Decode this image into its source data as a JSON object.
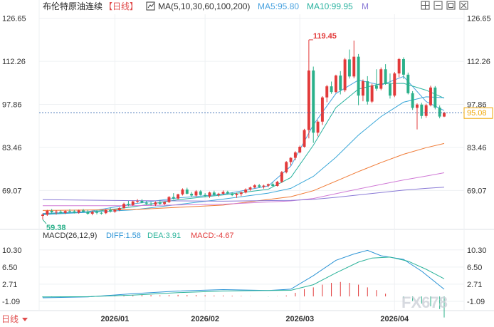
{
  "header": {
    "title": "布伦特原油连续",
    "period_label": "【日线】",
    "ma_label": "MA(5,10,30,60,100,200)",
    "ma5_label": "MA5:95.80",
    "ma10_label": "MA10:99.95",
    "more_label": "M"
  },
  "toolbar": {
    "icons": [
      "grid-icon",
      "restore-icon",
      "maximize-icon",
      "close-icon"
    ]
  },
  "colors": {
    "up": "#e23a3a",
    "down": "#2bb08a",
    "ma5": "#4aa3e0",
    "ma10": "#2bb3a0",
    "ma30": "#39a7d8",
    "ma60": "#f07a35",
    "ma100": "#d07ad6",
    "ma200": "#8a7ad6",
    "diff": "#2a93d5",
    "dea": "#2bb39a",
    "last_price": "#f0a500",
    "grid": "#eef0f3",
    "axis_text": "#333333"
  },
  "chart_data": [
    {
      "type": "candlestick",
      "title": "布伦特原油连续",
      "yticks": [
        126.65,
        112.26,
        97.86,
        83.46,
        69.07
      ],
      "ylim": [
        57.5,
        128.0
      ],
      "xticks": [
        "2026/01",
        "2026/02",
        "2026/03",
        "2026/04"
      ],
      "xtick_index": [
        16,
        36,
        57,
        78
      ],
      "high_label": "119.45",
      "low_label": "59.38",
      "last_price": 95.08,
      "candles": [
        [
          60.6,
          61.4,
          59.4,
          61.0
        ],
        [
          61.0,
          62.6,
          60.6,
          62.3
        ],
        [
          62.3,
          62.9,
          61.4,
          61.8
        ],
        [
          61.8,
          62.5,
          61.0,
          62.0
        ],
        [
          62.0,
          62.5,
          61.4,
          61.6
        ],
        [
          61.6,
          62.4,
          61.2,
          62.2
        ],
        [
          62.2,
          62.8,
          61.7,
          62.1
        ],
        [
          62.1,
          62.6,
          61.4,
          61.7
        ],
        [
          61.7,
          62.7,
          61.3,
          62.4
        ],
        [
          62.4,
          62.9,
          61.8,
          62.0
        ],
        [
          62.0,
          62.6,
          61.0,
          61.3
        ],
        [
          61.3,
          62.3,
          60.8,
          61.9
        ],
        [
          61.9,
          62.6,
          61.1,
          61.6
        ],
        [
          61.6,
          62.0,
          61.0,
          61.5
        ],
        [
          61.5,
          62.9,
          61.2,
          62.6
        ],
        [
          62.6,
          63.4,
          61.7,
          62.0
        ],
        [
          62.0,
          62.9,
          61.6,
          62.5
        ],
        [
          62.5,
          63.5,
          62.2,
          63.2
        ],
        [
          63.2,
          65.0,
          63.0,
          64.6
        ],
        [
          64.6,
          65.6,
          63.8,
          64.2
        ],
        [
          64.2,
          65.7,
          63.9,
          65.4
        ],
        [
          65.4,
          66.2,
          64.9,
          65.6
        ],
        [
          65.6,
          66.2,
          64.8,
          65.0
        ],
        [
          65.0,
          65.6,
          64.3,
          64.7
        ],
        [
          64.7,
          65.3,
          64.0,
          64.4
        ],
        [
          64.4,
          65.4,
          63.9,
          65.1
        ],
        [
          65.1,
          65.9,
          64.3,
          64.6
        ],
        [
          64.6,
          65.4,
          64.1,
          65.2
        ],
        [
          65.2,
          67.2,
          64.9,
          66.9
        ],
        [
          66.9,
          68.2,
          66.1,
          66.4
        ],
        [
          66.4,
          68.0,
          66.1,
          67.8
        ],
        [
          67.8,
          69.8,
          67.4,
          69.4
        ],
        [
          69.4,
          70.0,
          67.8,
          68.0
        ],
        [
          68.0,
          68.6,
          66.9,
          67.4
        ],
        [
          67.4,
          69.2,
          67.0,
          68.8
        ],
        [
          68.8,
          69.2,
          67.4,
          67.6
        ],
        [
          67.6,
          68.2,
          66.9,
          67.2
        ],
        [
          67.2,
          68.7,
          66.6,
          68.4
        ],
        [
          68.4,
          69.0,
          67.3,
          67.6
        ],
        [
          67.6,
          68.3,
          67.0,
          68.0
        ],
        [
          68.0,
          69.1,
          67.7,
          68.6
        ],
        [
          68.6,
          69.0,
          67.8,
          68.1
        ],
        [
          68.1,
          68.5,
          67.2,
          67.5
        ],
        [
          67.5,
          68.3,
          66.6,
          67.9
        ],
        [
          67.9,
          68.7,
          67.2,
          68.4
        ],
        [
          68.4,
          69.8,
          68.1,
          69.4
        ],
        [
          69.4,
          70.4,
          69.0,
          70.1
        ],
        [
          70.1,
          71.2,
          69.8,
          70.8
        ],
        [
          70.8,
          71.3,
          69.9,
          70.3
        ],
        [
          70.3,
          71.0,
          69.7,
          70.7
        ],
        [
          70.7,
          71.4,
          70.2,
          71.2
        ],
        [
          71.2,
          71.8,
          70.3,
          70.6
        ],
        [
          70.6,
          72.3,
          70.4,
          72.0
        ],
        [
          72.0,
          75.6,
          71.6,
          75.2
        ],
        [
          75.2,
          78.9,
          74.8,
          78.6
        ],
        [
          78.6,
          80.2,
          77.4,
          80.0
        ],
        [
          80.0,
          82.2,
          79.2,
          81.8
        ],
        [
          81.8,
          84.1,
          81.5,
          83.7
        ],
        [
          83.7,
          89.7,
          83.4,
          89.3
        ],
        [
          89.3,
          119.45,
          86.5,
          109.2
        ],
        [
          109.2,
          110.5,
          85.0,
          88.4
        ],
        [
          88.4,
          92.6,
          87.2,
          92.1
        ],
        [
          92.1,
          100.6,
          91.0,
          100.2
        ],
        [
          100.2,
          104.4,
          98.6,
          103.9
        ],
        [
          103.9,
          105.5,
          101.4,
          102.0
        ],
        [
          102.0,
          107.8,
          101.7,
          107.5
        ],
        [
          107.5,
          109.0,
          101.2,
          102.6
        ],
        [
          102.6,
          113.4,
          102.0,
          112.9
        ],
        [
          112.9,
          116.2,
          106.5,
          107.2
        ],
        [
          107.2,
          119.2,
          106.6,
          113.8
        ],
        [
          113.8,
          114.7,
          97.6,
          100.8
        ],
        [
          100.8,
          106.2,
          98.9,
          105.6
        ],
        [
          105.6,
          107.3,
          97.8,
          98.8
        ],
        [
          98.8,
          104.8,
          98.3,
          104.2
        ],
        [
          104.2,
          109.6,
          102.4,
          103.1
        ],
        [
          103.1,
          110.2,
          102.6,
          109.6
        ],
        [
          109.6,
          111.3,
          104.4,
          104.7
        ],
        [
          104.7,
          108.2,
          99.8,
          100.8
        ],
        [
          100.8,
          108.7,
          100.3,
          108.2
        ],
        [
          108.2,
          113.4,
          106.9,
          113.0
        ],
        [
          113.0,
          113.6,
          106.4,
          107.8
        ],
        [
          107.8,
          108.5,
          101.2,
          101.6
        ],
        [
          101.6,
          102.3,
          96.0,
          96.7
        ],
        [
          96.7,
          98.2,
          89.5,
          97.8
        ],
        [
          97.8,
          98.4,
          93.1,
          94.0
        ],
        [
          94.0,
          98.1,
          93.4,
          97.6
        ],
        [
          97.6,
          104.1,
          97.2,
          103.5
        ],
        [
          103.5,
          104.0,
          96.2,
          96.8
        ],
        [
          96.8,
          97.5,
          93.2,
          93.8
        ],
        [
          93.8,
          95.4,
          93.6,
          95.08
        ]
      ],
      "series": [
        {
          "name": "MA5",
          "values": [
            [
              0,
              61.4
            ],
            [
              10,
              62.0
            ],
            [
              20,
              64.6
            ],
            [
              30,
              66.6
            ],
            [
              40,
              67.8
            ],
            [
              50,
              70.6
            ],
            [
              55,
              77.2
            ],
            [
              60,
              91.0
            ],
            [
              65,
              101.5
            ],
            [
              70,
              106.0
            ],
            [
              75,
              104.3
            ],
            [
              80,
              107.2
            ],
            [
              85,
              98.8
            ],
            [
              89,
              95.8
            ]
          ]
        },
        {
          "name": "MA10",
          "values": [
            [
              0,
              61.2
            ],
            [
              10,
              61.8
            ],
            [
              20,
              63.6
            ],
            [
              30,
              66.0
            ],
            [
              40,
              67.6
            ],
            [
              50,
              69.5
            ],
            [
              55,
              73.4
            ],
            [
              60,
              84.2
            ],
            [
              65,
              96.8
            ],
            [
              70,
              103.0
            ],
            [
              75,
              104.8
            ],
            [
              80,
              104.9
            ],
            [
              85,
              102.6
            ],
            [
              89,
              99.95
            ]
          ]
        },
        {
          "name": "MA30",
          "values": [
            [
              0,
              61.0
            ],
            [
              20,
              62.6
            ],
            [
              40,
              66.2
            ],
            [
              50,
              68.2
            ],
            [
              55,
              69.8
            ],
            [
              60,
              73.8
            ],
            [
              65,
              80.2
            ],
            [
              70,
              87.6
            ],
            [
              75,
              93.8
            ],
            [
              80,
              98.6
            ],
            [
              85,
              100.4
            ],
            [
              89,
              100.1
            ]
          ]
        },
        {
          "name": "MA60",
          "values": [
            [
              0,
              62.4
            ],
            [
              20,
              62.7
            ],
            [
              40,
              64.2
            ],
            [
              55,
              67.0
            ],
            [
              60,
              69.0
            ],
            [
              65,
              72.2
            ],
            [
              70,
              75.4
            ],
            [
              75,
              78.4
            ],
            [
              80,
              81.2
            ],
            [
              85,
              83.4
            ],
            [
              89,
              84.8
            ]
          ]
        },
        {
          "name": "MA100",
          "values": [
            [
              0,
              64.0
            ],
            [
              20,
              64.0
            ],
            [
              40,
              64.5
            ],
            [
              55,
              65.6
            ],
            [
              60,
              66.4
            ],
            [
              65,
              68.0
            ],
            [
              70,
              69.6
            ],
            [
              75,
              71.1
            ],
            [
              80,
              72.6
            ],
            [
              85,
              73.9
            ],
            [
              89,
              75.0
            ]
          ]
        },
        {
          "name": "MA200",
          "values": [
            [
              0,
              66.0
            ],
            [
              20,
              65.7
            ],
            [
              40,
              65.5
            ],
            [
              55,
              65.8
            ],
            [
              60,
              66.1
            ],
            [
              65,
              66.8
            ],
            [
              70,
              67.6
            ],
            [
              75,
              68.4
            ],
            [
              80,
              69.2
            ],
            [
              85,
              69.8
            ],
            [
              89,
              70.2
            ]
          ]
        }
      ]
    },
    {
      "type": "macd",
      "title": "MACD(26,12,9)",
      "diff_label": "DIFF:1.58",
      "dea_label": "DEA:3.91",
      "macd_label": "MACD:-4.67",
      "yticks": [
        10.3,
        6.5,
        2.71,
        -1.09
      ],
      "ylim": [
        -2.2,
        12.0
      ],
      "series": [
        {
          "name": "DIFF",
          "values": [
            [
              0,
              -0.3
            ],
            [
              10,
              -0.1
            ],
            [
              20,
              0.6
            ],
            [
              30,
              1.2
            ],
            [
              40,
              1.5
            ],
            [
              50,
              1.3
            ],
            [
              55,
              1.6
            ],
            [
              60,
              4.6
            ],
            [
              65,
              8.0
            ],
            [
              69,
              9.4
            ],
            [
              72,
              10.2
            ],
            [
              75,
              9.0
            ],
            [
              80,
              8.2
            ],
            [
              84,
              5.6
            ],
            [
              89,
              1.58
            ]
          ]
        },
        {
          "name": "DEA",
          "values": [
            [
              0,
              -0.1
            ],
            [
              10,
              -0.05
            ],
            [
              20,
              0.3
            ],
            [
              30,
              0.85
            ],
            [
              40,
              1.2
            ],
            [
              50,
              1.3
            ],
            [
              55,
              1.35
            ],
            [
              60,
              2.6
            ],
            [
              65,
              5.2
            ],
            [
              70,
              7.6
            ],
            [
              73,
              8.5
            ],
            [
              77,
              8.7
            ],
            [
              81,
              7.8
            ],
            [
              85,
              6.0
            ],
            [
              89,
              3.91
            ]
          ]
        }
      ],
      "histogram": [
        [
          0,
          -0.2
        ],
        [
          2,
          -0.15
        ],
        [
          4,
          -0.1
        ],
        [
          6,
          -0.1
        ],
        [
          8,
          -0.05
        ],
        [
          10,
          -0.05
        ],
        [
          12,
          0.0
        ],
        [
          14,
          0.1
        ],
        [
          16,
          0.15
        ],
        [
          18,
          0.25
        ],
        [
          20,
          0.3
        ],
        [
          22,
          0.35
        ],
        [
          24,
          0.3
        ],
        [
          26,
          0.25
        ],
        [
          28,
          0.3
        ],
        [
          30,
          0.35
        ],
        [
          32,
          0.3
        ],
        [
          34,
          0.3
        ],
        [
          36,
          0.25
        ],
        [
          38,
          0.2
        ],
        [
          40,
          0.2
        ],
        [
          42,
          0.15
        ],
        [
          44,
          0.1
        ],
        [
          46,
          0.05
        ],
        [
          48,
          0.0
        ],
        [
          50,
          -0.05
        ],
        [
          52,
          0.05
        ],
        [
          54,
          0.2
        ],
        [
          56,
          0.8
        ],
        [
          58,
          1.6
        ],
        [
          60,
          2.0
        ],
        [
          62,
          2.6
        ],
        [
          64,
          3.0
        ],
        [
          66,
          3.2
        ],
        [
          68,
          3.0
        ],
        [
          70,
          2.6
        ],
        [
          72,
          2.0
        ],
        [
          74,
          1.4
        ],
        [
          76,
          0.6
        ],
        [
          78,
          0.0
        ],
        [
          80,
          -0.4
        ],
        [
          82,
          -1.0
        ],
        [
          84,
          -1.6
        ],
        [
          86,
          -2.2
        ],
        [
          88,
          -2.8
        ],
        [
          89,
          -4.67
        ]
      ]
    }
  ],
  "axis": {
    "x_labels": [
      "2026/01",
      "2026/02",
      "2026/03",
      "2026/04"
    ]
  },
  "footer": {
    "period_selector": "日线",
    "watermark": "FX678"
  }
}
